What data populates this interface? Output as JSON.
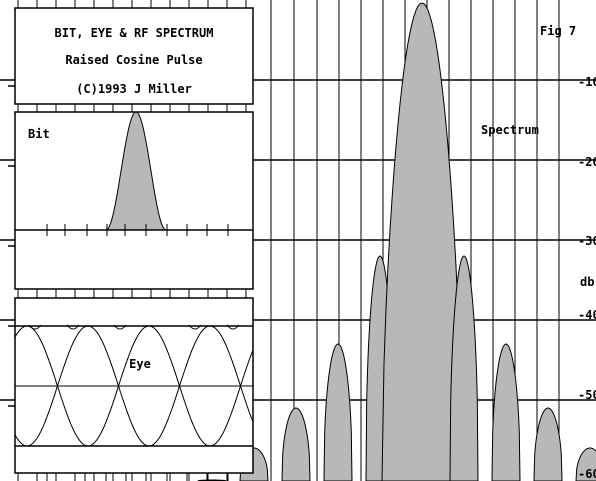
{
  "title_box": {
    "line1": "BIT, EYE & RF SPECTRUM",
    "line2": "Raised Cosine Pulse",
    "line3": "(C)1993 J Miller"
  },
  "fig_label": "Fig 7",
  "colors": {
    "ink": "#000000",
    "fill": "#b8b8b8",
    "background": "#ffffff"
  },
  "chart_data": [
    {
      "type": "area",
      "label": "Bit",
      "pulse_shape": "raised-cosine",
      "baseline": 0,
      "peak": 1
    },
    {
      "type": "line",
      "label": "Eye",
      "levels": [
        "high",
        "low"
      ]
    },
    {
      "type": "area",
      "label": "Spectrum",
      "y_unit_label": "db",
      "ytick_labels": [
        "-10",
        "-20",
        "-30",
        "-40",
        "-50",
        "-60"
      ],
      "ylim": [
        -60,
        0
      ],
      "grid": true,
      "lobes_db": [
        {
          "offset": -5,
          "peak": -60
        },
        {
          "offset": -4,
          "peak": -56
        },
        {
          "offset": -3,
          "peak": -51
        },
        {
          "offset": -2,
          "peak": -43
        },
        {
          "offset": -1,
          "peak": -32
        },
        {
          "offset": 0,
          "peak": 0
        },
        {
          "offset": 1,
          "peak": -32
        },
        {
          "offset": 2,
          "peak": -43
        },
        {
          "offset": 3,
          "peak": -51
        },
        {
          "offset": 4,
          "peak": -56
        },
        {
          "offset": 5,
          "peak": -60
        }
      ]
    }
  ]
}
